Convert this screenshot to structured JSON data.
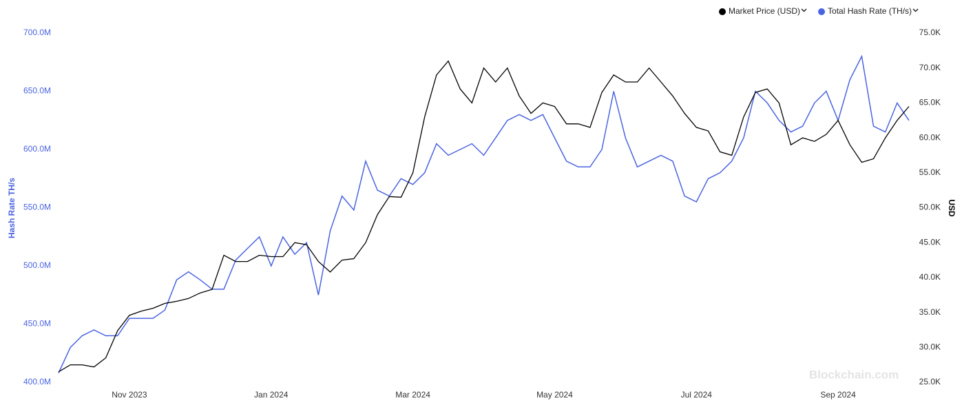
{
  "chart_data": {
    "type": "line",
    "watermark": "Blockchain.com",
    "y_label": "Hash Rate TH/s",
    "y2_label": "USD",
    "legend": "top-right",
    "categories": [
      null,
      null,
      null,
      null,
      null,
      null,
      "Nov 2023",
      null,
      null,
      null,
      null,
      null,
      null,
      null,
      null,
      null,
      null,
      null,
      "Jan 2024",
      null,
      null,
      null,
      null,
      null,
      null,
      null,
      null,
      null,
      null,
      null,
      "Mar 2024",
      null,
      null,
      null,
      null,
      null,
      null,
      null,
      null,
      null,
      null,
      null,
      "May 2024",
      null,
      null,
      null,
      null,
      null,
      null,
      null,
      null,
      null,
      null,
      null,
      "Jul 2024",
      null,
      null,
      null,
      null,
      null,
      null,
      null,
      null,
      null,
      null,
      null,
      "Sep 2024",
      null,
      null,
      null,
      null,
      null,
      null
    ],
    "ylim": [
      400000000,
      700000000
    ],
    "yticks": [
      {
        "value": 400000000,
        "label": "400.0M"
      },
      {
        "value": 450000000,
        "label": "450.0M"
      },
      {
        "value": 500000000,
        "label": "500.0M"
      },
      {
        "value": 550000000,
        "label": "550.0M"
      },
      {
        "value": 600000000,
        "label": "600.0M"
      },
      {
        "value": 650000000,
        "label": "650.0M"
      },
      {
        "value": 700000000,
        "label": "700.0M"
      }
    ],
    "y2lim": [
      25000,
      75000
    ],
    "y2ticks": [
      {
        "value": 25000,
        "label": "25.0K"
      },
      {
        "value": 30000,
        "label": "30.0K"
      },
      {
        "value": 35000,
        "label": "35.0K"
      },
      {
        "value": 40000,
        "label": "40.0K"
      },
      {
        "value": 45000,
        "label": "45.0K"
      },
      {
        "value": 50000,
        "label": "50.0K"
      },
      {
        "value": 55000,
        "label": "55.0K"
      },
      {
        "value": 60000,
        "label": "60.0K"
      },
      {
        "value": 65000,
        "label": "65.0K"
      },
      {
        "value": 70000,
        "label": "70.0K"
      },
      {
        "value": 75000,
        "label": "75.0K"
      }
    ],
    "series": [
      {
        "name": "Market Price (USD)",
        "color": "#000000",
        "axis": "y2",
        "values": [
          26500,
          27500,
          27500,
          27200,
          28500,
          32400,
          34600,
          35200,
          35600,
          36300,
          36600,
          37000,
          37800,
          38300,
          43200,
          42300,
          42300,
          43200,
          43000,
          43000,
          45000,
          44700,
          42300,
          40800,
          42500,
          42700,
          45000,
          49000,
          51600,
          51500,
          55000,
          63000,
          69000,
          71000,
          67000,
          65000,
          70000,
          68000,
          70000,
          66000,
          63500,
          65000,
          64500,
          62000,
          62000,
          61500,
          66500,
          69000,
          68000,
          68000,
          70000,
          68000,
          66000,
          63500,
          61500,
          61000,
          58000,
          57500,
          63000,
          66500,
          67000,
          65000,
          59000,
          60000,
          59500,
          60500,
          62500,
          59000,
          56500,
          57000,
          60000,
          62500,
          64500
        ]
      },
      {
        "name": "Total Hash Rate (TH/s)",
        "color": "#4a63e0",
        "axis": "y",
        "values": [
          408000000,
          430000000,
          440000000,
          445000000,
          440000000,
          440000000,
          455000000,
          455000000,
          455000000,
          462000000,
          488000000,
          495000000,
          488000000,
          480000000,
          480000000,
          505000000,
          515000000,
          525000000,
          500000000,
          525000000,
          510000000,
          520000000,
          475000000,
          530000000,
          560000000,
          548000000,
          590000000,
          565000000,
          560000000,
          575000000,
          570000000,
          580000000,
          605000000,
          595000000,
          600000000,
          605000000,
          595000000,
          610000000,
          625000000,
          630000000,
          625000000,
          630000000,
          610000000,
          590000000,
          585000000,
          585000000,
          600000000,
          650000000,
          610000000,
          585000000,
          590000000,
          595000000,
          590000000,
          560000000,
          555000000,
          575000000,
          580000000,
          590000000,
          610000000,
          650000000,
          640000000,
          625000000,
          615000000,
          620000000,
          640000000,
          650000000,
          625000000,
          660000000,
          680000000,
          620000000,
          615000000,
          640000000,
          625000000
        ]
      }
    ]
  }
}
